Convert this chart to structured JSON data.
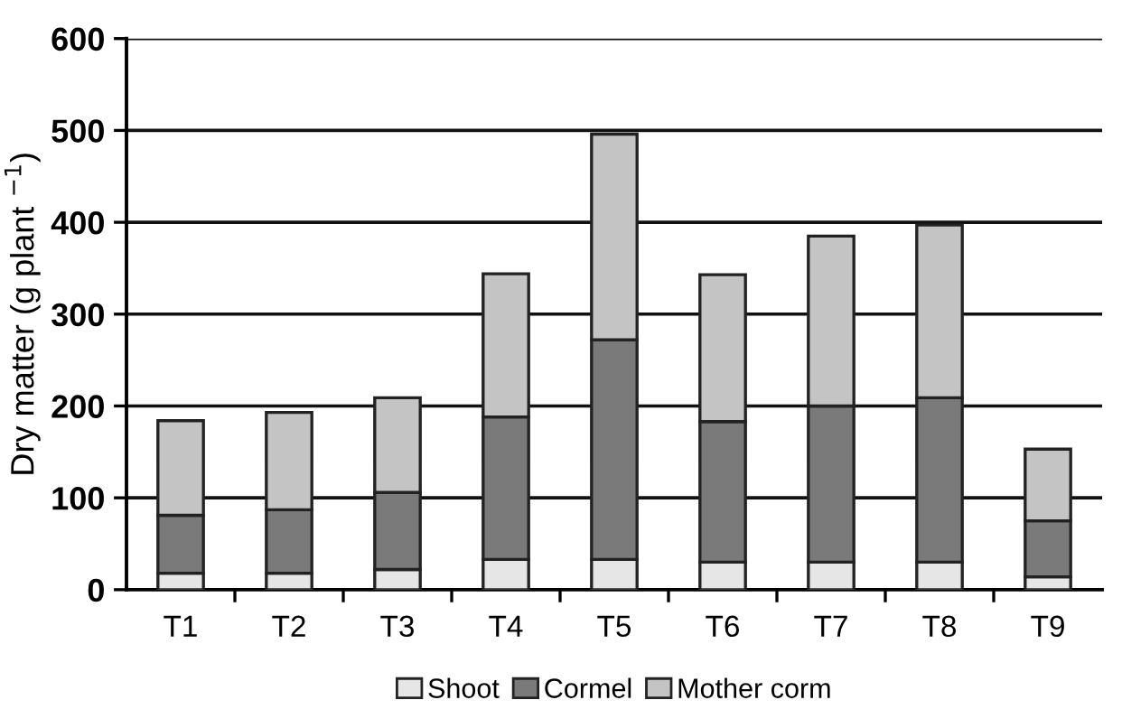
{
  "chart_data": {
    "type": "bar",
    "stacked": true,
    "ylabel": "Dry matter (g plant $^{−1}$)",
    "categories": [
      "T1",
      "T2",
      "T3",
      "T4",
      "T5",
      "T6",
      "T7",
      "T8",
      "T9"
    ],
    "series": [
      {
        "name": "Shoot",
        "color": "#e6e6e6",
        "values": [
          18,
          18,
          22,
          33,
          33,
          30,
          30,
          30,
          14
        ]
      },
      {
        "name": "Cormel",
        "color": "#7a7a7a",
        "values": [
          63,
          69,
          84,
          155,
          239,
          153,
          170,
          179,
          61
        ]
      },
      {
        "name": "Mother corm",
        "color": "#c4c4c4",
        "values": [
          103,
          106,
          103,
          156,
          224,
          160,
          185,
          188,
          78
        ]
      }
    ],
    "ylim": [
      0,
      600
    ],
    "yticks": [
      0,
      100,
      200,
      300,
      400,
      500,
      600
    ],
    "grid": "y",
    "legend": "bottom"
  }
}
